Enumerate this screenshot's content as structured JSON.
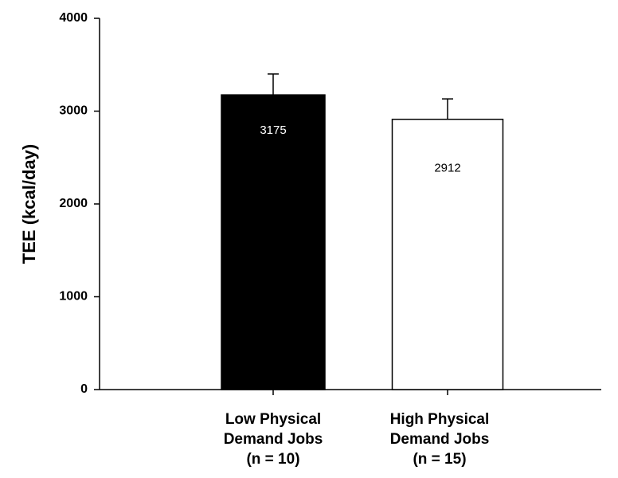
{
  "chart_data": {
    "type": "bar",
    "ylabel": "TEE (kcal/day)",
    "categories": [
      [
        "Low Physical",
        "Demand Jobs",
        "(n = 10)"
      ],
      [
        "High Physical",
        "Demand Jobs",
        "(n = 15)"
      ]
    ],
    "values": [
      3175,
      2912
    ],
    "errors": [
      225,
      220
    ],
    "colors": [
      "#000000",
      "#ffffff"
    ],
    "ylim": [
      0,
      4000
    ],
    "yticks": [
      0,
      1000,
      2000,
      3000,
      4000
    ]
  }
}
